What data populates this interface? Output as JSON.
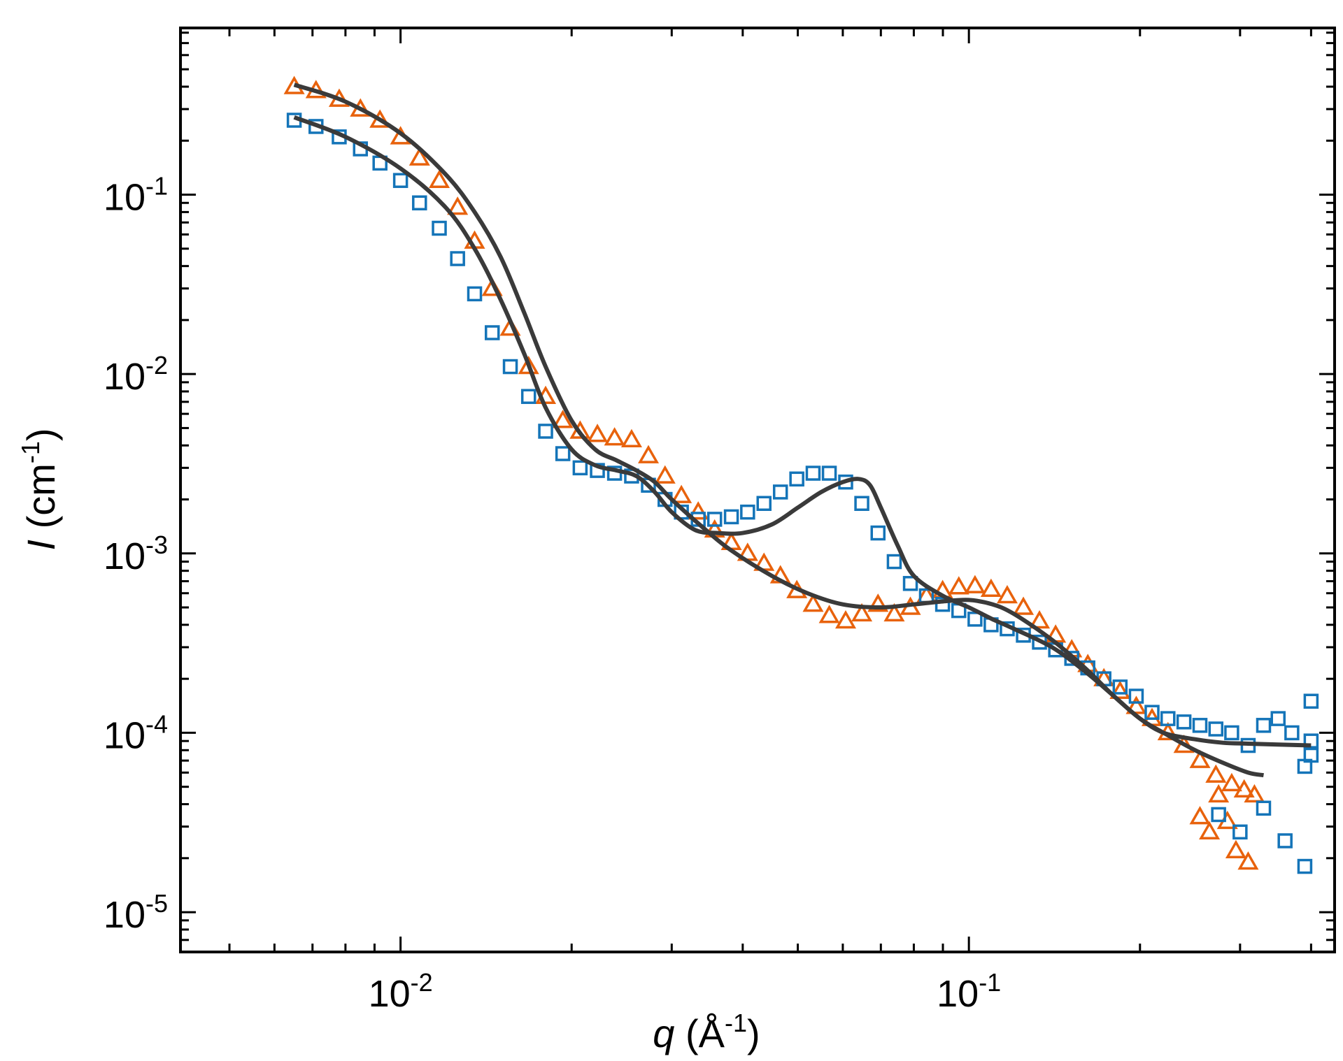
{
  "chart_data": {
    "type": "scatter",
    "title": "",
    "xlabel": {
      "symbol": "q",
      "unit_open": " (Å",
      "unit_exp": "-1",
      "unit_close": ")"
    },
    "ylabel": {
      "symbol": "I",
      "unit_open": " (cm",
      "unit_exp": "-1",
      "unit_close": ")"
    },
    "xscale": "log",
    "yscale": "log",
    "xlim": [
      0.0041,
      0.44
    ],
    "ylim": [
      6e-06,
      0.85
    ],
    "x_tick_labels": [
      {
        "value": 0.01,
        "base": "10",
        "exp": "-2"
      },
      {
        "value": 0.1,
        "base": "10",
        "exp": "-1"
      }
    ],
    "y_tick_labels": [
      {
        "value": 0.1,
        "base": "10",
        "exp": "-1"
      },
      {
        "value": 0.01,
        "base": "10",
        "exp": "-2"
      },
      {
        "value": 0.001,
        "base": "10",
        "exp": "-3"
      },
      {
        "value": 0.0001,
        "base": "10",
        "exp": "-4"
      },
      {
        "value": 1e-05,
        "base": "10",
        "exp": "-5"
      }
    ],
    "legend": "none",
    "grid": false,
    "series": [
      {
        "name": "triangles",
        "marker": "triangle-open",
        "color": "#E8620C",
        "x": [
          0.0065,
          0.0071,
          0.0078,
          0.0085,
          0.0092,
          0.01,
          0.0108,
          0.0117,
          0.0126,
          0.0135,
          0.0145,
          0.0156,
          0.0168,
          0.018,
          0.0193,
          0.0207,
          0.0222,
          0.0238,
          0.0255,
          0.0273,
          0.0292,
          0.0312,
          0.0334,
          0.0357,
          0.0382,
          0.0408,
          0.0436,
          0.0466,
          0.0498,
          0.0532,
          0.0568,
          0.0607,
          0.0648,
          0.0692,
          0.0739,
          0.0789,
          0.0842,
          0.0899,
          0.096,
          0.1025,
          0.1094,
          0.1168,
          0.1247,
          0.1331,
          0.1421,
          0.1517,
          0.1619,
          0.1728,
          0.1845,
          0.197,
          0.21,
          0.224,
          0.239,
          0.255,
          0.272,
          0.29,
          0.305,
          0.318,
          0.255,
          0.265,
          0.275,
          0.285,
          0.295,
          0.31
        ],
        "y": [
          0.4,
          0.38,
          0.34,
          0.3,
          0.26,
          0.21,
          0.16,
          0.12,
          0.085,
          0.055,
          0.03,
          0.018,
          0.011,
          0.0075,
          0.0055,
          0.0048,
          0.0046,
          0.0044,
          0.0043,
          0.0035,
          0.0027,
          0.0021,
          0.0017,
          0.00135,
          0.00115,
          0.001,
          0.00088,
          0.00075,
          0.00062,
          0.00052,
          0.00045,
          0.00042,
          0.00046,
          0.00052,
          0.00046,
          0.0005,
          0.00058,
          0.00062,
          0.00065,
          0.00066,
          0.00063,
          0.00058,
          0.0005,
          0.00042,
          0.00035,
          0.00029,
          0.00024,
          0.0002,
          0.00017,
          0.00014,
          0.00012,
          0.0001,
          8.5e-05,
          7e-05,
          5.8e-05,
          5.2e-05,
          4.8e-05,
          4.5e-05,
          3.4e-05,
          2.8e-05,
          4.5e-05,
          3.2e-05,
          2.2e-05,
          1.9e-05
        ],
        "fit": {
          "x": [
            0.0065,
            0.008,
            0.01,
            0.012,
            0.0135,
            0.015,
            0.0165,
            0.018,
            0.02,
            0.022,
            0.024,
            0.026,
            0.028,
            0.03,
            0.034,
            0.038,
            0.045,
            0.052,
            0.06,
            0.07,
            0.08,
            0.09,
            0.1,
            0.11,
            0.12,
            0.14,
            0.16,
            0.18,
            0.2,
            0.22,
            0.25,
            0.28,
            0.31,
            0.33
          ],
          "y": [
            0.41,
            0.33,
            0.22,
            0.13,
            0.08,
            0.045,
            0.022,
            0.011,
            0.0055,
            0.0038,
            0.0033,
            0.0029,
            0.0025,
            0.002,
            0.0014,
            0.00105,
            0.00075,
            0.0006,
            0.00052,
            0.0005,
            0.00052,
            0.00054,
            0.00055,
            0.00052,
            0.00046,
            0.00033,
            0.00023,
            0.00016,
            0.00012,
            0.0001,
            8e-05,
            6.8e-05,
            6e-05,
            5.8e-05
          ]
        }
      },
      {
        "name": "squares",
        "marker": "square-open",
        "color": "#1474B8",
        "x": [
          0.0065,
          0.0071,
          0.0078,
          0.0085,
          0.0092,
          0.01,
          0.0108,
          0.0117,
          0.0126,
          0.0135,
          0.0145,
          0.0156,
          0.0168,
          0.018,
          0.0193,
          0.0207,
          0.0222,
          0.0238,
          0.0255,
          0.0273,
          0.0292,
          0.0312,
          0.0334,
          0.0357,
          0.0382,
          0.0408,
          0.0436,
          0.0466,
          0.0498,
          0.0532,
          0.0568,
          0.0607,
          0.0648,
          0.0692,
          0.0739,
          0.0789,
          0.0842,
          0.0899,
          0.096,
          0.1025,
          0.1094,
          0.1168,
          0.1247,
          0.1331,
          0.1421,
          0.1517,
          0.1619,
          0.1728,
          0.1845,
          0.197,
          0.21,
          0.224,
          0.239,
          0.255,
          0.272,
          0.29,
          0.31,
          0.33,
          0.35,
          0.37,
          0.39,
          0.4,
          0.4,
          0.4,
          0.275,
          0.3,
          0.33,
          0.36,
          0.39
        ],
        "y": [
          0.26,
          0.24,
          0.21,
          0.18,
          0.15,
          0.12,
          0.09,
          0.065,
          0.044,
          0.028,
          0.017,
          0.011,
          0.0075,
          0.0048,
          0.0036,
          0.003,
          0.0029,
          0.0028,
          0.0027,
          0.0024,
          0.002,
          0.0017,
          0.00155,
          0.00155,
          0.0016,
          0.0017,
          0.0019,
          0.0022,
          0.0026,
          0.0028,
          0.0028,
          0.0025,
          0.0019,
          0.0013,
          0.0009,
          0.00068,
          0.00058,
          0.00052,
          0.00048,
          0.00043,
          0.0004,
          0.00038,
          0.00035,
          0.00032,
          0.00029,
          0.00026,
          0.00023,
          0.0002,
          0.00018,
          0.00016,
          0.00013,
          0.00012,
          0.000115,
          0.00011,
          0.000105,
          0.0001,
          8.5e-05,
          0.00011,
          0.00012,
          0.0001,
          6.5e-05,
          9e-05,
          7.5e-05,
          0.00015,
          3.5e-05,
          2.8e-05,
          3.8e-05,
          2.5e-05,
          1.8e-05
        ],
        "fit": {
          "x": [
            0.0065,
            0.008,
            0.01,
            0.012,
            0.0135,
            0.015,
            0.0165,
            0.018,
            0.02,
            0.022,
            0.024,
            0.026,
            0.028,
            0.03,
            0.033,
            0.036,
            0.04,
            0.045,
            0.05,
            0.055,
            0.06,
            0.064,
            0.067,
            0.07,
            0.075,
            0.08,
            0.09,
            0.1,
            0.11,
            0.12,
            0.14,
            0.16,
            0.18,
            0.2,
            0.22,
            0.25,
            0.28,
            0.31,
            0.35,
            0.4
          ],
          "y": [
            0.27,
            0.21,
            0.14,
            0.085,
            0.05,
            0.026,
            0.013,
            0.0065,
            0.0038,
            0.0031,
            0.0029,
            0.0027,
            0.0022,
            0.0017,
            0.00135,
            0.0013,
            0.0013,
            0.00145,
            0.0018,
            0.0022,
            0.0025,
            0.0026,
            0.0024,
            0.0018,
            0.0011,
            0.00075,
            0.00058,
            0.0005,
            0.00043,
            0.00038,
            0.0003,
            0.00022,
            0.00016,
            0.00012,
            0.0001,
            9.2e-05,
            8.8e-05,
            8.7e-05,
            8.6e-05,
            8.5e-05
          ]
        }
      }
    ]
  }
}
